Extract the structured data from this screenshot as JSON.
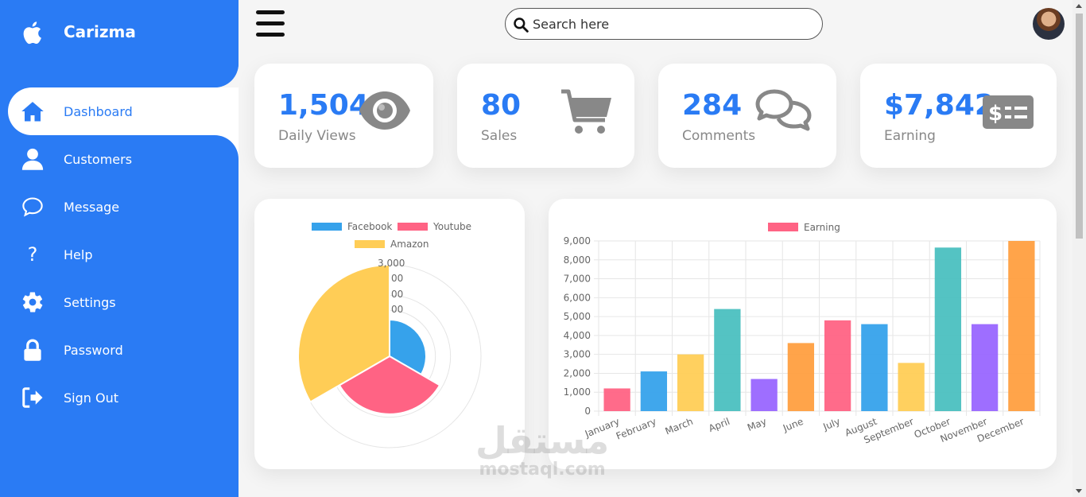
{
  "brand": {
    "name": "Carizma"
  },
  "sidebar": {
    "items": [
      {
        "label": "Dashboard",
        "icon": "home-icon",
        "active": true
      },
      {
        "label": "Customers",
        "icon": "person-icon"
      },
      {
        "label": "Message",
        "icon": "chat-icon"
      },
      {
        "label": "Help",
        "icon": "help-icon"
      },
      {
        "label": "Settings",
        "icon": "gear-icon"
      },
      {
        "label": "Password",
        "icon": "lock-icon"
      },
      {
        "label": "Sign Out",
        "icon": "sign-out-icon"
      }
    ]
  },
  "search": {
    "placeholder": "Search here"
  },
  "cards": [
    {
      "number": "1,504",
      "caption": "Daily Views",
      "icon": "eye-icon"
    },
    {
      "number": "80",
      "caption": "Sales",
      "icon": "cart-icon"
    },
    {
      "number": "284",
      "caption": "Comments",
      "icon": "comments-icon"
    },
    {
      "number": "$7,842",
      "caption": "Earning",
      "icon": "cash-icon"
    }
  ],
  "colors": {
    "accent": "#2a7bf4",
    "facebook": "#36a2eb",
    "youtube": "#ff6384",
    "amazon": "#ffcd56"
  },
  "watermark": {
    "arabic": "مستقل",
    "latin": "mostaql.com"
  },
  "chart_data": [
    {
      "type": "polarArea",
      "legend": [
        "Facebook",
        "Youtube",
        "Amazon"
      ],
      "series": [
        {
          "name": "Facebook",
          "value": 1200,
          "color": "#36a2eb"
        },
        {
          "name": "Youtube",
          "value": 1900,
          "color": "#ff6384"
        },
        {
          "name": "Amazon",
          "value": 3000,
          "color": "#ffcd56"
        }
      ],
      "tick_labels": [
        "3,000",
        "00",
        "00",
        "00"
      ],
      "rmax": 3000
    },
    {
      "type": "bar",
      "legend": [
        "Earning"
      ],
      "categories": [
        "January",
        "February",
        "March",
        "April",
        "May",
        "June",
        "July",
        "August",
        "September",
        "October",
        "November",
        "December"
      ],
      "values": [
        1200,
        2100,
        3000,
        5400,
        1700,
        3600,
        4800,
        4600,
        2550,
        8650,
        4600,
        9000
      ],
      "colors": [
        "#ff6384",
        "#36a2eb",
        "#ffcd56",
        "#4bc0c0",
        "#9966ff",
        "#ff9f40",
        "#ff6384",
        "#36a2eb",
        "#ffcd56",
        "#4bc0c0",
        "#9966ff",
        "#ff9f40"
      ],
      "ylim": [
        0,
        9000
      ],
      "yticks": [
        "0",
        "1,000",
        "2,000",
        "3,000",
        "4,000",
        "5,000",
        "6,000",
        "7,000",
        "8,000",
        "9,000"
      ],
      "grid": true,
      "legend_position": "top"
    }
  ]
}
